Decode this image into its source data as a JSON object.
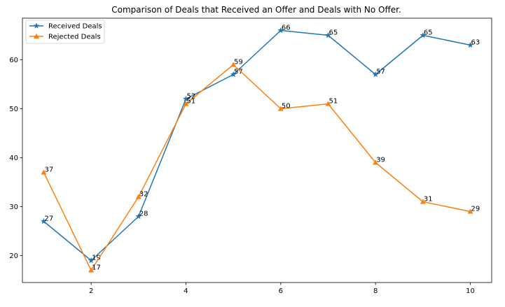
{
  "chart_data": {
    "type": "line",
    "title": "Comparison of Deals that Received an Offer and Deals with No Offer.",
    "xlabel": "",
    "ylabel": "",
    "x": [
      1,
      2,
      3,
      4,
      5,
      6,
      7,
      8,
      9,
      10
    ],
    "xlim": [
      0.55,
      10.45
    ],
    "ylim": [
      14.5,
      68.5
    ],
    "xticks": [
      2,
      4,
      6,
      8,
      10
    ],
    "yticks": [
      20,
      30,
      40,
      50,
      60
    ],
    "grid": false,
    "legend_position": "top-left",
    "series": [
      {
        "name": "Received Deals",
        "color": "#1f77b4",
        "marker": "star",
        "values": [
          27,
          19,
          28,
          52,
          57,
          66,
          65,
          57,
          65,
          63
        ]
      },
      {
        "name": "Rejected Deals",
        "color": "#ff7f0e",
        "marker": "triangle",
        "values": [
          37,
          17,
          32,
          51,
          59,
          50,
          51,
          39,
          31,
          29
        ]
      }
    ]
  }
}
